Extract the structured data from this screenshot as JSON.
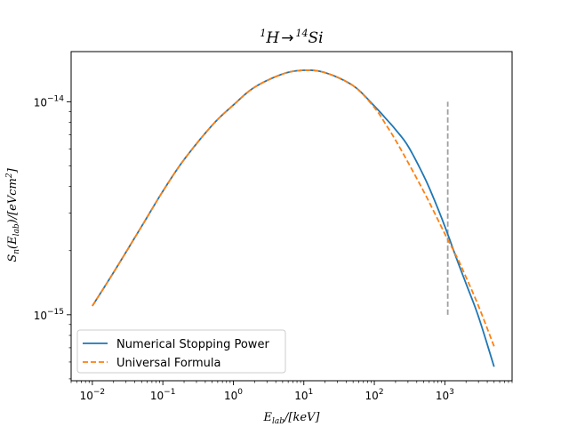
{
  "chart_data": {
    "type": "line",
    "title": {
      "base1": "1",
      "t1": "H",
      "arrow": "→",
      "base2": "14",
      "t2": "Si"
    },
    "xlabel": {
      "main": "E",
      "sub": "lab",
      "rest": "/[keV]"
    },
    "ylabel": {
      "main": "S",
      "sub": "n",
      "paren": "(E",
      "sub2": "lab",
      "rest": ")/[eVcm",
      "sup": "2",
      "end": "]"
    },
    "xscale": "log",
    "yscale": "log",
    "xlim": [
      0.005,
      9000
    ],
    "ylim": [
      4.9e-16,
      1.72e-14
    ],
    "x_ticks": [
      {
        "value": 0.01,
        "base": "10",
        "exp": "−2"
      },
      {
        "value": 0.1,
        "base": "10",
        "exp": "−1"
      },
      {
        "value": 1,
        "base": "10",
        "exp": "0"
      },
      {
        "value": 10,
        "base": "10",
        "exp": "1"
      },
      {
        "value": 100,
        "base": "10",
        "exp": "2"
      },
      {
        "value": 1000,
        "base": "10",
        "exp": "3"
      }
    ],
    "y_ticks": [
      {
        "value": 1e-15,
        "base": "10",
        "exp": "−15"
      },
      {
        "value": 1e-14,
        "base": "10",
        "exp": "−14"
      }
    ],
    "grid": false,
    "legend_position": "lower-left",
    "series": [
      {
        "name": "Numerical Stopping Power",
        "color": "#1f77b4",
        "dash": "solid",
        "x": [
          0.01,
          0.02,
          0.05,
          0.1,
          0.2,
          0.5,
          1,
          2,
          5,
          10,
          20,
          50,
          100,
          150,
          200,
          300,
          500,
          700,
          1000,
          1500,
          2000,
          3000,
          5000
        ],
        "y": [
          1.1e-15,
          1.58e-15,
          2.6e-15,
          3.8e-15,
          5.35e-15,
          7.75e-15,
          9.65e-15,
          1.17e-14,
          1.35e-14,
          1.405e-14,
          1.37e-14,
          1.19e-14,
          9.55e-15,
          8.25e-15,
          7.4e-15,
          6.2e-15,
          4.5e-15,
          3.5e-15,
          2.6e-15,
          1.8e-15,
          1.4e-15,
          9.8e-16,
          5.7e-16
        ]
      },
      {
        "name": "Universal Formula",
        "color": "#ff7f0e",
        "dash": "dashed",
        "x": [
          0.01,
          0.02,
          0.05,
          0.1,
          0.2,
          0.5,
          1,
          2,
          5,
          10,
          20,
          50,
          100,
          150,
          200,
          300,
          500,
          700,
          1000,
          1500,
          2000,
          3000,
          5000
        ],
        "y": [
          1.1e-15,
          1.58e-15,
          2.6e-15,
          3.8e-15,
          5.35e-15,
          7.75e-15,
          9.65e-15,
          1.17e-14,
          1.35e-14,
          1.405e-14,
          1.37e-14,
          1.19e-14,
          9.4e-15,
          7.7e-15,
          6.6e-15,
          5.2e-15,
          3.8e-15,
          3.05e-15,
          2.4e-15,
          1.85e-15,
          1.5e-15,
          1.1e-15,
          7.1e-16
        ]
      }
    ],
    "vline": {
      "x": 1100,
      "y_range": [
        1e-15,
        1e-14
      ],
      "color": "#a0a0a0",
      "dash": "dashed"
    }
  }
}
